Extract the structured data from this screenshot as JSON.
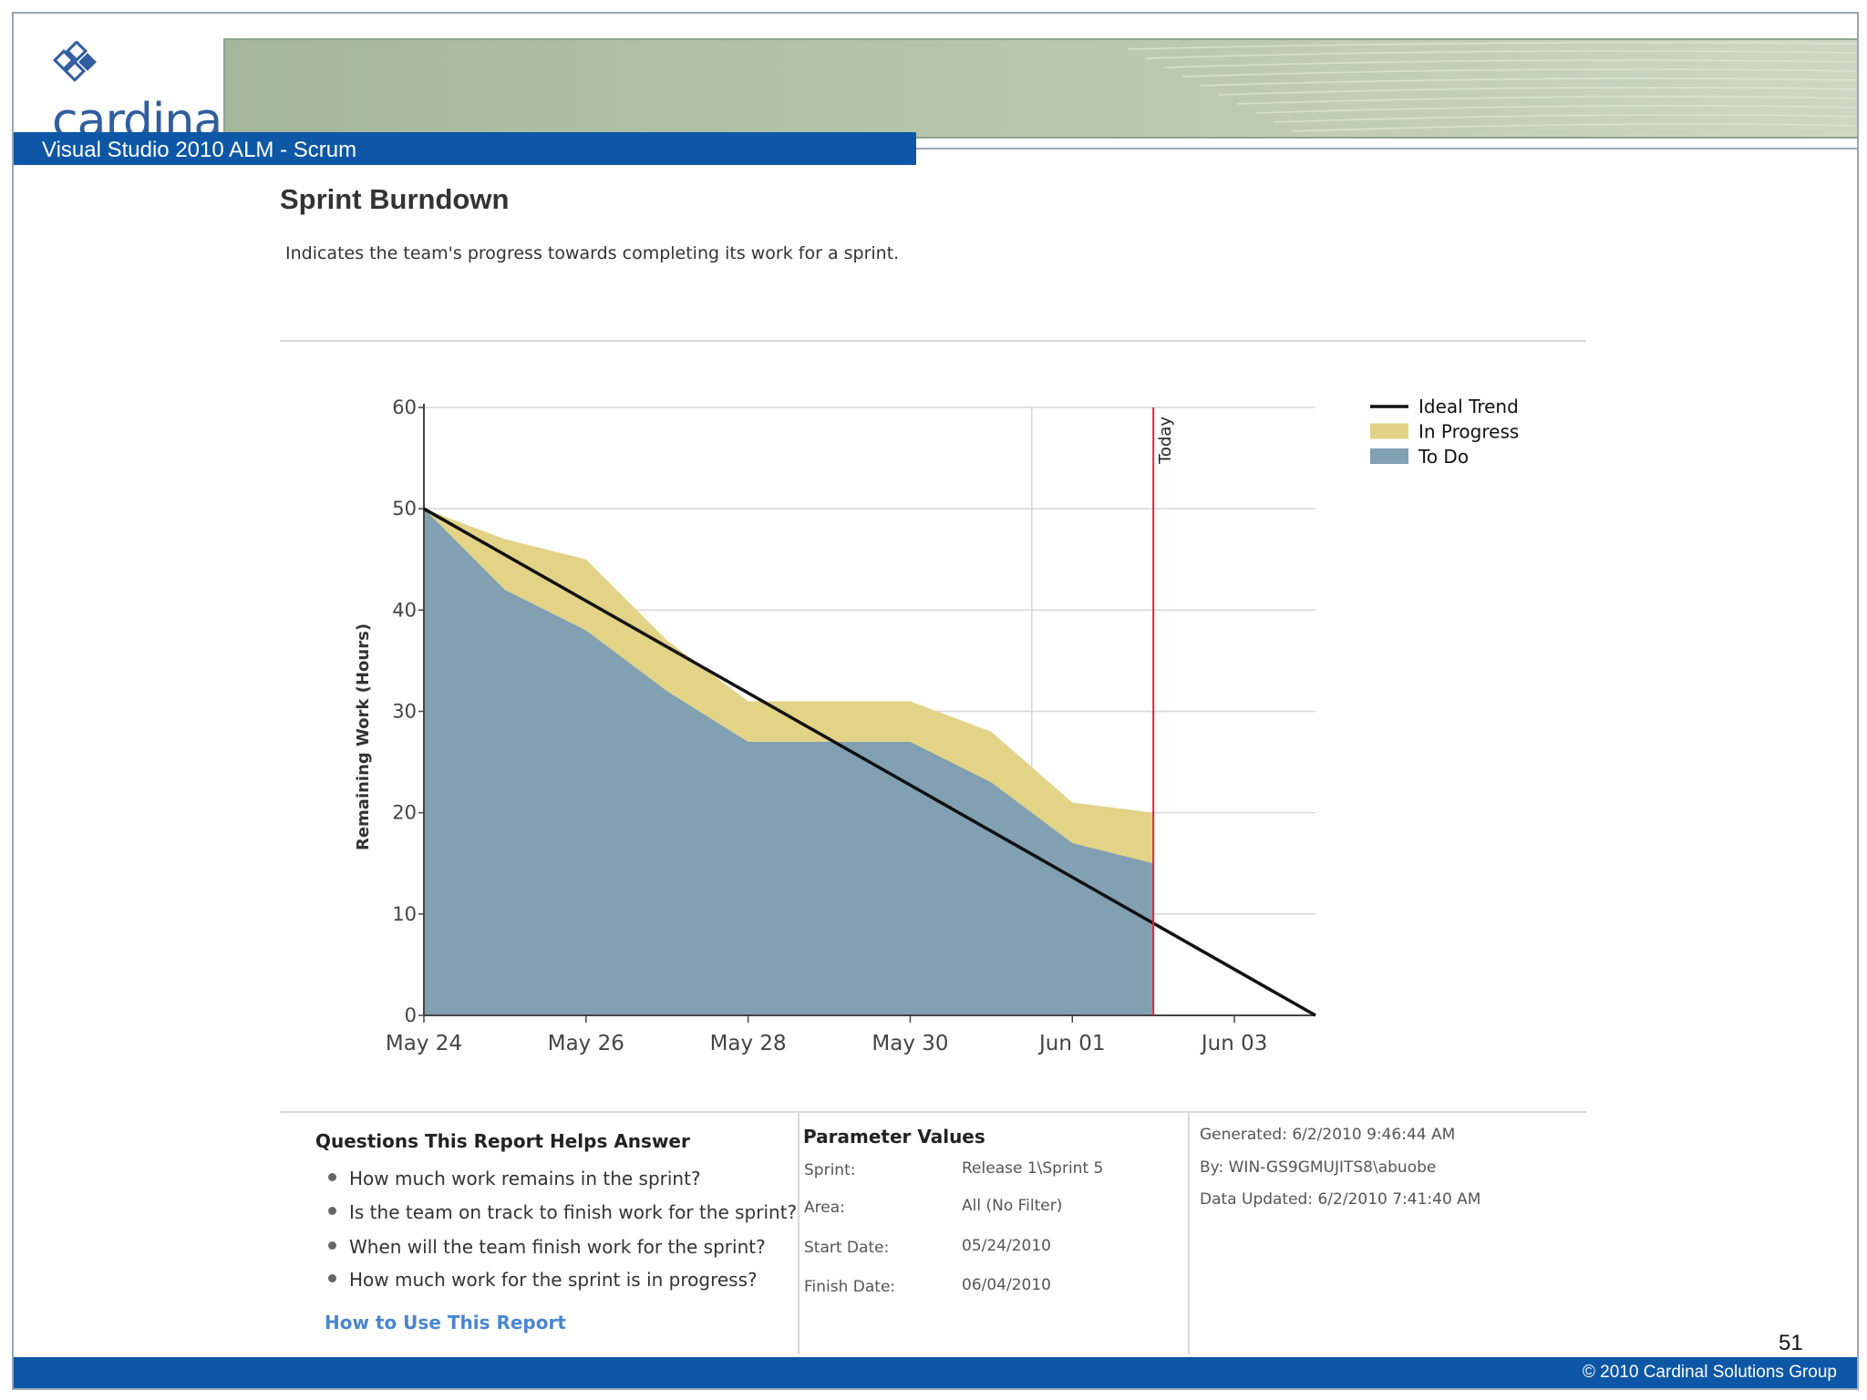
{
  "header": {
    "logo_text": "cardinal",
    "title_bar": "Visual Studio 2010 ALM - Scrum"
  },
  "report": {
    "title": "Sprint Burndown",
    "description": "Indicates the team's progress towards completing its work for a sprint."
  },
  "chart_data": {
    "type": "area",
    "ylabel": "Remaining Work (Hours)",
    "xlabel": "",
    "ylim": [
      0,
      60
    ],
    "yticks": [
      0,
      10,
      20,
      30,
      40,
      50,
      60
    ],
    "x_domain_days": [
      0,
      11
    ],
    "xticks": [
      {
        "day": 0,
        "label": "May 24"
      },
      {
        "day": 2,
        "label": "May 26"
      },
      {
        "day": 4,
        "label": "May 28"
      },
      {
        "day": 6,
        "label": "May 30"
      },
      {
        "day": 8,
        "label": "Jun 01"
      },
      {
        "day": 10,
        "label": "Jun 03"
      }
    ],
    "today_day": 9,
    "today_label": "Today",
    "grid": true,
    "legend_position": "top-right",
    "x": [
      0,
      1,
      2,
      3,
      4,
      5,
      6,
      7,
      8,
      9
    ],
    "series": [
      {
        "name": "To Do",
        "color": "#81a0b2",
        "values": [
          50,
          42,
          38,
          32,
          27,
          27,
          27,
          23,
          17,
          15
        ]
      },
      {
        "name": "In Progress",
        "color": "#e2d386",
        "values": [
          0,
          5,
          7,
          5,
          4,
          4,
          4,
          5,
          4,
          5
        ]
      },
      {
        "name": "Ideal Trend",
        "color": "#111111",
        "x": [
          0,
          11
        ],
        "values": [
          50,
          0
        ]
      }
    ]
  },
  "questions": {
    "heading": "Questions This Report Helps Answer",
    "items": [
      "How much work remains in the sprint?",
      "Is the team on track to finish work for the sprint?",
      "When will the team finish work for the sprint?",
      "How much work for the sprint is in progress?"
    ],
    "link": "How to Use This Report"
  },
  "parameters": {
    "heading": "Parameter Values",
    "rows": [
      {
        "label": "Sprint:",
        "value": "Release 1\\Sprint 5"
      },
      {
        "label": "Area:",
        "value": "All (No Filter)"
      },
      {
        "label": "Start Date:",
        "value": "05/24/2010"
      },
      {
        "label": "Finish Date:",
        "value": "06/04/2010"
      }
    ]
  },
  "generated": {
    "generated": "Generated: 6/2/2010 9:46:44 AM",
    "by": "By: WIN-GS9GMUJITS8\\abuobe",
    "updated": "Data Updated: 6/2/2010 7:41:40 AM"
  },
  "footer": {
    "page_number": "51",
    "copyright": "© 2010 Cardinal Solutions Group"
  },
  "colors": {
    "brand_blue": "#0d57a6",
    "banner_green": "#a3b79c",
    "today_line": "#e0243a",
    "link": "#4a86d0"
  }
}
